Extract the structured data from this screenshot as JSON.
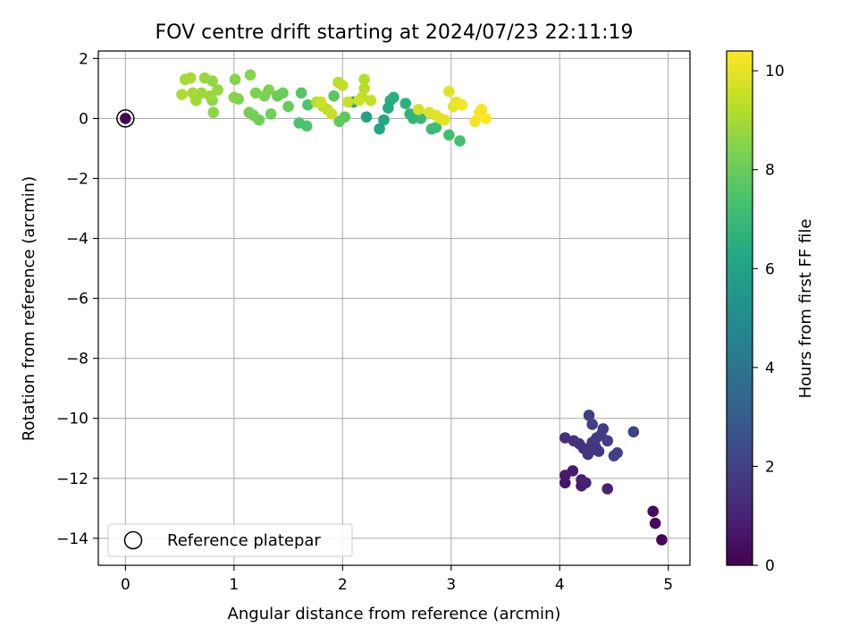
{
  "chart_data": {
    "type": "scatter",
    "title": "FOV centre drift starting at 2024/07/23 22:11:19",
    "xlabel": "Angular distance from reference (arcmin)",
    "ylabel": "Rotation from reference (arcmin)",
    "xlim": [
      -0.25,
      5.2
    ],
    "ylim": [
      -14.9,
      2.25
    ],
    "x_ticks": [
      0,
      1,
      2,
      3,
      4,
      5
    ],
    "y_ticks": [
      2,
      0,
      -2,
      -4,
      -6,
      -8,
      -10,
      -12,
      -14
    ],
    "grid": true,
    "legend": {
      "placement": "lower-left",
      "entries": [
        "Reference platepar"
      ]
    },
    "colorbar": {
      "label": "Hours from first FF file",
      "colormap": "viridis",
      "range": [
        0,
        10.4
      ],
      "ticks": [
        0,
        2,
        4,
        6,
        8,
        10
      ]
    },
    "reference_point": {
      "x": 0,
      "y": 0,
      "hours": 0.1,
      "label": "Reference platepar"
    },
    "series": [
      {
        "points": [
          [
            4.94,
            -14.05,
            0.1
          ],
          [
            4.88,
            -13.5,
            0.2
          ],
          [
            4.86,
            -13.1,
            0.3
          ],
          [
            4.05,
            -12.15,
            0.6
          ],
          [
            4.05,
            -11.9,
            0.7
          ],
          [
            4.12,
            -11.75,
            0.8
          ],
          [
            4.2,
            -12.25,
            0.8
          ],
          [
            4.2,
            -12.05,
            0.9
          ],
          [
            4.24,
            -12.15,
            1.0
          ],
          [
            4.44,
            -12.35,
            1.0
          ],
          [
            4.05,
            -10.65,
            1.4
          ],
          [
            4.13,
            -10.75,
            1.4
          ],
          [
            4.18,
            -10.85,
            1.5
          ],
          [
            4.22,
            -11.0,
            1.5
          ],
          [
            4.26,
            -11.2,
            1.6
          ],
          [
            4.3,
            -11.05,
            1.6
          ],
          [
            4.33,
            -10.95,
            1.7
          ],
          [
            4.36,
            -11.1,
            1.7
          ],
          [
            4.3,
            -10.8,
            1.7
          ],
          [
            4.34,
            -10.65,
            1.8
          ],
          [
            4.38,
            -10.55,
            1.8
          ],
          [
            4.4,
            -10.35,
            1.9
          ],
          [
            4.44,
            -10.75,
            1.9
          ],
          [
            4.5,
            -11.25,
            2.0
          ],
          [
            4.53,
            -11.15,
            2.0
          ],
          [
            4.27,
            -9.9,
            1.9
          ],
          [
            4.3,
            -10.2,
            2.0
          ],
          [
            4.68,
            -10.45,
            2.0
          ],
          [
            2.1,
            0.55,
            5.8
          ],
          [
            2.22,
            0.05,
            6.0
          ],
          [
            2.34,
            -0.35,
            6.1
          ],
          [
            2.38,
            -0.05,
            6.2
          ],
          [
            2.42,
            0.35,
            6.3
          ],
          [
            2.44,
            0.6,
            6.4
          ],
          [
            2.47,
            0.7,
            6.5
          ],
          [
            2.58,
            0.5,
            6.6
          ],
          [
            2.62,
            0.15,
            6.7
          ],
          [
            2.65,
            0.0,
            6.8
          ],
          [
            2.72,
            0.0,
            6.9
          ],
          [
            2.82,
            -0.35,
            7.0
          ],
          [
            2.86,
            -0.3,
            7.1
          ],
          [
            2.98,
            -0.55,
            7.2
          ],
          [
            3.08,
            -0.75,
            7.3
          ],
          [
            1.6,
            -0.15,
            7.4
          ],
          [
            1.67,
            -0.25,
            7.5
          ],
          [
            1.68,
            0.45,
            7.5
          ],
          [
            1.62,
            0.85,
            7.6
          ],
          [
            1.92,
            0.75,
            7.7
          ],
          [
            1.97,
            -0.1,
            7.8
          ],
          [
            2.02,
            0.05,
            7.8
          ],
          [
            1.5,
            0.4,
            7.9
          ],
          [
            1.4,
            0.75,
            8.0
          ],
          [
            1.45,
            0.85,
            8.0
          ],
          [
            1.34,
            0.15,
            8.1
          ],
          [
            1.23,
            -0.05,
            8.1
          ],
          [
            1.18,
            0.1,
            8.2
          ],
          [
            1.14,
            0.2,
            8.2
          ],
          [
            1.2,
            0.85,
            8.3
          ],
          [
            1.28,
            0.75,
            8.3
          ],
          [
            1.32,
            0.95,
            8.4
          ],
          [
            1.04,
            0.65,
            8.4
          ],
          [
            1.0,
            0.7,
            8.5
          ],
          [
            1.01,
            1.3,
            8.5
          ],
          [
            1.15,
            1.45,
            8.5
          ],
          [
            0.81,
            0.2,
            8.6
          ],
          [
            0.8,
            0.6,
            8.6
          ],
          [
            0.8,
            1.25,
            8.7
          ],
          [
            0.85,
            0.95,
            8.7
          ],
          [
            0.78,
            0.75,
            8.8
          ],
          [
            0.73,
            1.35,
            8.8
          ],
          [
            0.7,
            0.85,
            8.9
          ],
          [
            0.65,
            0.6,
            8.9
          ],
          [
            0.62,
            0.85,
            9.0
          ],
          [
            0.6,
            1.35,
            9.0
          ],
          [
            0.55,
            1.3,
            9.0
          ],
          [
            0.52,
            0.8,
            9.1
          ],
          [
            1.76,
            0.55,
            9.2
          ],
          [
            1.82,
            0.4,
            9.3
          ],
          [
            1.86,
            0.3,
            9.4
          ],
          [
            1.9,
            0.15,
            9.5
          ],
          [
            1.96,
            1.2,
            9.3
          ],
          [
            2.0,
            1.1,
            9.4
          ],
          [
            2.05,
            0.55,
            9.5
          ],
          [
            2.2,
            1.3,
            9.2
          ],
          [
            2.2,
            1.0,
            9.3
          ],
          [
            2.18,
            0.7,
            9.4
          ],
          [
            2.26,
            0.6,
            9.5
          ],
          [
            2.15,
            0.6,
            9.6
          ],
          [
            1.8,
            0.55,
            9.6
          ],
          [
            2.7,
            0.3,
            9.7
          ],
          [
            2.8,
            0.2,
            9.9
          ],
          [
            2.86,
            0.1,
            9.9
          ],
          [
            2.9,
            0.0,
            10.0
          ],
          [
            2.94,
            -0.05,
            10.0
          ],
          [
            2.98,
            0.9,
            9.9
          ],
          [
            3.02,
            0.4,
            10.0
          ],
          [
            3.05,
            0.55,
            10.1
          ],
          [
            3.1,
            0.45,
            10.2
          ],
          [
            3.22,
            -0.1,
            10.2
          ],
          [
            3.26,
            0.2,
            10.3
          ],
          [
            3.28,
            0.3,
            10.3
          ],
          [
            3.32,
            0.0,
            10.4
          ]
        ]
      }
    ]
  }
}
